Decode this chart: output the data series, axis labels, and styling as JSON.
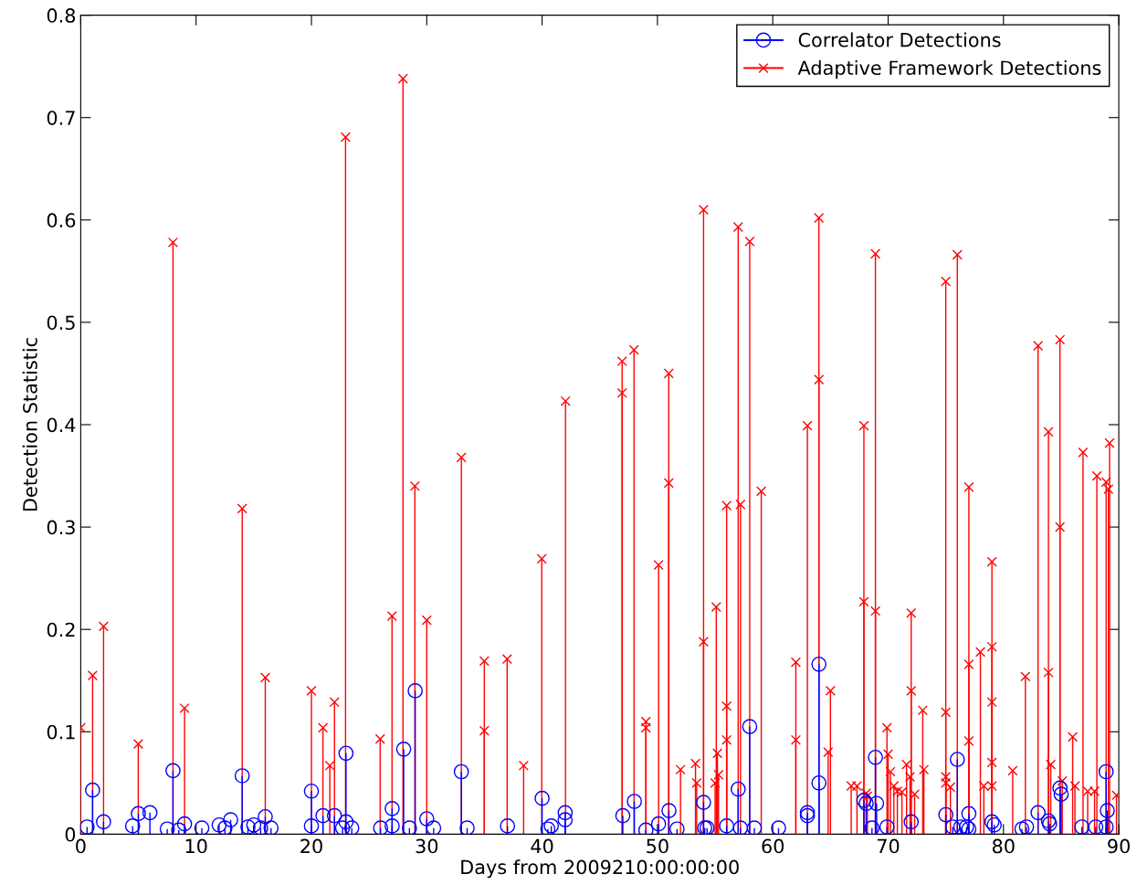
{
  "chart_data": {
    "type": "lollipop",
    "xlabel": "Days from 2009210:00:00:00",
    "ylabel": "Detection Statistic",
    "xlim": [
      0,
      90
    ],
    "xticks": [
      0,
      10,
      20,
      30,
      40,
      50,
      60,
      70,
      80,
      90
    ],
    "ylim": [
      0,
      0.8
    ],
    "yticks": [
      0,
      0.1,
      0.2,
      0.3,
      0.4,
      0.5,
      0.6,
      0.7,
      0.8
    ],
    "grid": false,
    "legend": "top right",
    "series": [
      {
        "name": "Correlator Detections",
        "color": "#0000ff",
        "marker": "circle",
        "x": [
          0.55,
          1.03,
          1.98,
          4.5,
          5.0,
          6.0,
          7.5,
          8.0,
          8.5,
          9.0,
          10.5,
          12.0,
          12.5,
          13.0,
          14.0,
          14.5,
          15.0,
          15.6,
          16.0,
          16.5,
          20.0,
          20.0,
          21.0,
          22.0,
          22.7,
          23.0,
          23.0,
          23.5,
          26.0,
          27.0,
          27.0,
          28.0,
          28.5,
          29.0,
          30.0,
          30.6,
          33.0,
          33.5,
          37.0,
          40.0,
          40.5,
          40.8,
          42.0,
          42.0,
          47.0,
          48.0,
          49.0,
          50.1,
          51.0,
          51.7,
          54.0,
          54.1,
          54.3,
          56.0,
          57.0,
          57.2,
          58.0,
          58.4,
          60.5,
          63.0,
          63.0,
          64.0,
          64.0,
          67.9,
          68.1,
          68.6,
          68.9,
          69.0,
          69.9,
          72.0,
          75.0,
          75.6,
          76.0,
          76.3,
          76.8,
          77.0,
          77.0,
          79.0,
          79.2,
          81.6,
          82.0,
          83.0,
          83.9,
          84.0,
          84.9,
          85.0,
          86.8,
          88.0,
          88.9,
          89.0,
          88.9
        ],
        "values": [
          0.007,
          0.043,
          0.012,
          0.008,
          0.02,
          0.021,
          0.005,
          0.062,
          0.004,
          0.01,
          0.006,
          0.009,
          0.006,
          0.014,
          0.057,
          0.007,
          0.009,
          0.006,
          0.017,
          0.006,
          0.042,
          0.008,
          0.018,
          0.018,
          0.006,
          0.012,
          0.079,
          0.006,
          0.006,
          0.025,
          0.008,
          0.083,
          0.006,
          0.14,
          0.015,
          0.006,
          0.061,
          0.006,
          0.008,
          0.035,
          0.005,
          0.008,
          0.014,
          0.021,
          0.018,
          0.032,
          0.004,
          0.01,
          0.023,
          0.005,
          0.031,
          0.006,
          0.006,
          0.008,
          0.044,
          0.006,
          0.105,
          0.006,
          0.006,
          0.021,
          0.018,
          0.05,
          0.166,
          0.033,
          0.03,
          0.006,
          0.075,
          0.03,
          0.007,
          0.012,
          0.019,
          0.007,
          0.073,
          0.007,
          0.007,
          0.02,
          0.005,
          0.012,
          0.009,
          0.005,
          0.007,
          0.021,
          0.013,
          0.01,
          0.045,
          0.039,
          0.007,
          0.007,
          0.061,
          0.023,
          0.007
        ]
      },
      {
        "name": "Adaptive Framework Detections",
        "color": "#ff0000",
        "marker": "cross",
        "x": [
          0.0,
          1.03,
          1.98,
          4.99,
          8.0,
          9.0,
          14.0,
          16.0,
          20.0,
          21.0,
          21.6,
          22.0,
          22.96,
          25.96,
          26.99,
          27.94,
          28.97,
          30.0,
          33.0,
          34.99,
          34.99,
          36.97,
          38.4,
          39.97,
          42.03,
          46.94,
          46.94,
          47.97,
          49.0,
          49.0,
          50.1,
          50.98,
          50.98,
          52.0,
          53.3,
          53.4,
          54.0,
          54.0,
          55.0,
          55.1,
          55.2,
          55.3,
          56.0,
          56.0,
          56.0,
          57.0,
          57.2,
          58.0,
          59.0,
          62.0,
          62.0,
          63.0,
          64.0,
          64.0,
          64.8,
          65.0,
          66.8,
          67.3,
          67.9,
          67.9,
          68.1,
          68.2,
          68.9,
          68.9,
          69.9,
          70.0,
          70.2,
          70.5,
          70.8,
          71.2,
          71.6,
          71.9,
          72.0,
          72.0,
          72.3,
          73.0,
          73.1,
          75.0,
          75.0,
          75.0,
          75.0,
          75.4,
          76.0,
          77.0,
          77.0,
          77.0,
          78.0,
          78.3,
          79.0,
          79.0,
          79.0,
          79.0,
          79.0,
          80.8,
          81.9,
          83.0,
          83.9,
          83.9,
          84.1,
          84.9,
          84.9,
          85.1,
          86.0,
          86.2,
          86.9,
          87.3,
          87.9,
          88.1,
          88.9,
          89.1,
          89.2,
          89.8
        ],
        "values": [
          0.104,
          0.155,
          0.203,
          0.088,
          0.578,
          0.123,
          0.318,
          0.153,
          0.14,
          0.104,
          0.067,
          0.129,
          0.681,
          0.093,
          0.213,
          0.738,
          0.34,
          0.209,
          0.368,
          0.169,
          0.101,
          0.171,
          0.067,
          0.269,
          0.423,
          0.462,
          0.431,
          0.473,
          0.11,
          0.104,
          0.263,
          0.45,
          0.343,
          0.063,
          0.069,
          0.05,
          0.61,
          0.188,
          0.05,
          0.222,
          0.079,
          0.058,
          0.321,
          0.125,
          0.092,
          0.593,
          0.322,
          0.579,
          0.335,
          0.168,
          0.092,
          0.399,
          0.602,
          0.444,
          0.08,
          0.14,
          0.047,
          0.047,
          0.399,
          0.227,
          0.04,
          0.037,
          0.567,
          0.218,
          0.104,
          0.078,
          0.061,
          0.047,
          0.042,
          0.041,
          0.068,
          0.056,
          0.14,
          0.216,
          0.039,
          0.121,
          0.063,
          0.54,
          0.119,
          0.05,
          0.056,
          0.046,
          0.566,
          0.339,
          0.166,
          0.091,
          0.178,
          0.047,
          0.266,
          0.183,
          0.129,
          0.07,
          0.047,
          0.062,
          0.154,
          0.477,
          0.393,
          0.158,
          0.068,
          0.483,
          0.3,
          0.052,
          0.095,
          0.047,
          0.373,
          0.042,
          0.042,
          0.35,
          0.344,
          0.337,
          0.382,
          0.038
        ]
      }
    ]
  }
}
